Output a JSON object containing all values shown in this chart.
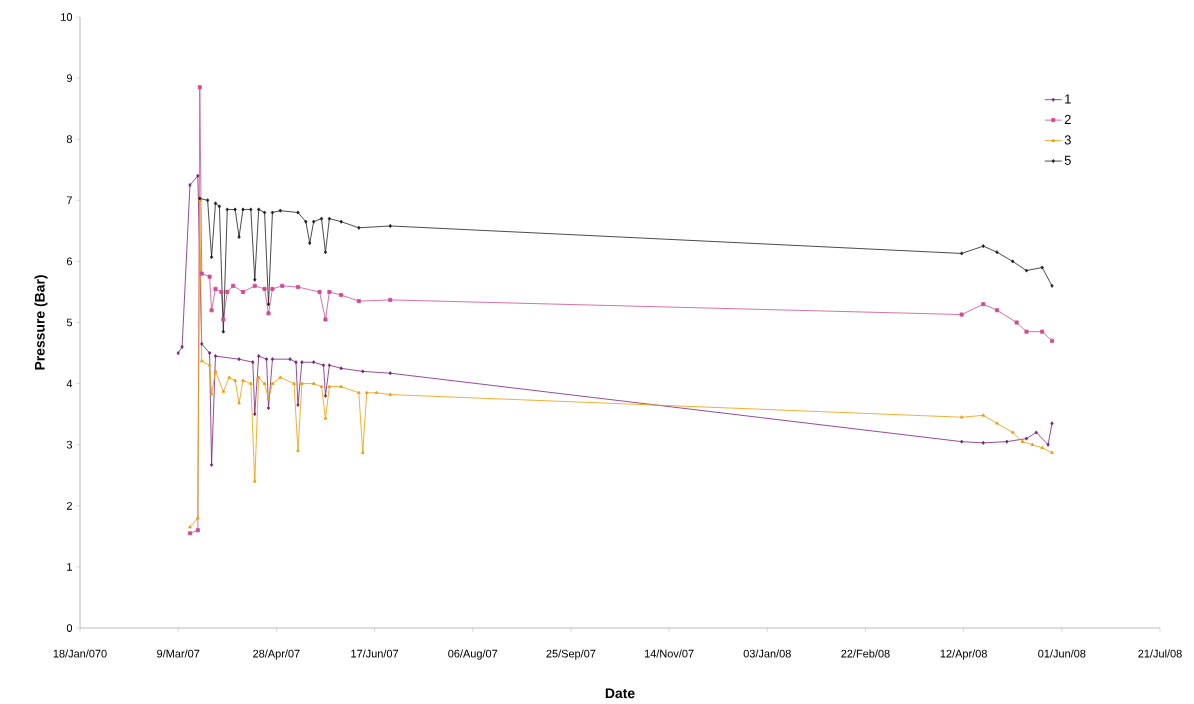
{
  "chart_data": {
    "type": "line",
    "xlabel": "Date",
    "ylabel": "Pressure (Bar)",
    "xlim": [
      "2007-01-18",
      "2008-07-21"
    ],
    "xticks": [
      {
        "value": "2007-01-18",
        "label": "18/Jan/070"
      },
      {
        "value": "2007-03-09",
        "label": "9/Mar/07"
      },
      {
        "value": "2007-04-28",
        "label": "28/Apr/07"
      },
      {
        "value": "2007-06-17",
        "label": "17/Jun/07"
      },
      {
        "value": "2007-08-06",
        "label": "06/Aug/07"
      },
      {
        "value": "2007-09-25",
        "label": "25/Sep/07"
      },
      {
        "value": "2007-11-14",
        "label": "14/Nov/07"
      },
      {
        "value": "2008-01-03",
        "label": "03/Jan/08"
      },
      {
        "value": "2008-02-22",
        "label": "22/Feb/08"
      },
      {
        "value": "2008-04-12",
        "label": "12/Apr/08"
      },
      {
        "value": "2008-06-01",
        "label": "01/Jun/08"
      },
      {
        "value": "2008-07-21",
        "label": "21/Jul/08"
      }
    ],
    "ylim": [
      0,
      10
    ],
    "yticks": [
      0,
      1,
      2,
      3,
      4,
      5,
      6,
      7,
      8,
      9,
      10
    ],
    "grid": false,
    "legend": "top right",
    "series": [
      {
        "name": "1",
        "color": "#7b1f7c",
        "marker": "diamond",
        "x": [
          "2007-03-09",
          "2007-03-11",
          "2007-03-15",
          "2007-03-19",
          "2007-03-21",
          "2007-03-25",
          "2007-03-26",
          "2007-03-28",
          "2007-04-09",
          "2007-04-16",
          "2007-04-17",
          "2007-04-19",
          "2007-04-23",
          "2007-04-24",
          "2007-04-26",
          "2007-05-05",
          "2007-05-08",
          "2007-05-09",
          "2007-05-11",
          "2007-05-17",
          "2007-05-22",
          "2007-05-23",
          "2007-05-25",
          "2007-05-31",
          "2007-06-11",
          "2007-06-25",
          "2008-04-11",
          "2008-04-22",
          "2008-05-04",
          "2008-05-14",
          "2008-05-19",
          "2008-05-25",
          "2008-05-27"
        ],
        "values": [
          4.5,
          4.6,
          7.25,
          7.4,
          4.65,
          4.5,
          2.67,
          4.45,
          4.4,
          4.35,
          3.5,
          4.45,
          4.4,
          3.6,
          4.4,
          4.4,
          4.35,
          3.65,
          4.35,
          4.35,
          4.3,
          3.8,
          4.3,
          4.25,
          4.2,
          4.17,
          3.05,
          3.03,
          3.05,
          3.1,
          3.2,
          3.0,
          3.35
        ]
      },
      {
        "name": "2",
        "color": "#d04b94",
        "marker": "square",
        "x": [
          "2007-03-15",
          "2007-03-19",
          "2007-03-20",
          "2007-03-21",
          "2007-03-25",
          "2007-03-26",
          "2007-03-28",
          "2007-03-31",
          "2007-04-01",
          "2007-04-03",
          "2007-04-06",
          "2007-04-11",
          "2007-04-17",
          "2007-04-22",
          "2007-04-24",
          "2007-04-26",
          "2007-05-01",
          "2007-05-09",
          "2007-05-20",
          "2007-05-23",
          "2007-05-25",
          "2007-05-31",
          "2007-06-09",
          "2007-06-25",
          "2008-04-11",
          "2008-04-22",
          "2008-04-29",
          "2008-05-09",
          "2008-05-14",
          "2008-05-22",
          "2008-05-27"
        ],
        "values": [
          1.55,
          1.6,
          8.85,
          5.8,
          5.75,
          5.2,
          5.55,
          5.5,
          5.05,
          5.5,
          5.6,
          5.5,
          5.6,
          5.55,
          5.15,
          5.55,
          5.6,
          5.58,
          5.5,
          5.05,
          5.5,
          5.45,
          5.35,
          5.37,
          5.13,
          5.3,
          5.2,
          5.0,
          4.85,
          4.85,
          4.7
        ]
      },
      {
        "name": "3",
        "color": "#f39a00",
        "marker": "triangle",
        "x": [
          "2007-03-15",
          "2007-03-19",
          "2007-03-20",
          "2007-03-21",
          "2007-03-25",
          "2007-03-26",
          "2007-03-28",
          "2007-04-01",
          "2007-04-04",
          "2007-04-07",
          "2007-04-09",
          "2007-04-11",
          "2007-04-15",
          "2007-04-17",
          "2007-04-19",
          "2007-04-22",
          "2007-04-24",
          "2007-04-26",
          "2007-04-30",
          "2007-05-07",
          "2007-05-09",
          "2007-05-11",
          "2007-05-17",
          "2007-05-21",
          "2007-05-23",
          "2007-05-25",
          "2007-05-31",
          "2007-06-09",
          "2007-06-11",
          "2007-06-13",
          "2007-06-18",
          "2007-06-25",
          "2008-04-11",
          "2008-04-22",
          "2008-04-29",
          "2008-05-07",
          "2008-05-12",
          "2008-05-17",
          "2008-05-22",
          "2008-05-27"
        ],
        "values": [
          1.65,
          1.8,
          7.0,
          4.37,
          4.3,
          3.83,
          4.2,
          3.87,
          4.1,
          4.05,
          3.68,
          4.05,
          4.0,
          2.4,
          4.1,
          4.0,
          3.75,
          4.0,
          4.1,
          4.0,
          2.9,
          4.0,
          4.0,
          3.95,
          3.43,
          3.95,
          3.95,
          3.85,
          2.87,
          3.85,
          3.85,
          3.82,
          3.45,
          3.48,
          3.35,
          3.2,
          3.05,
          3.0,
          2.95,
          2.87
        ]
      },
      {
        "name": "5",
        "color": "#1e1e1e",
        "marker": "diamond",
        "x": [
          "2007-03-20",
          "2007-03-24",
          "2007-03-26",
          "2007-03-28",
          "2007-03-30",
          "2007-04-01",
          "2007-04-03",
          "2007-04-07",
          "2007-04-09",
          "2007-04-11",
          "2007-04-15",
          "2007-04-17",
          "2007-04-19",
          "2007-04-22",
          "2007-04-24",
          "2007-04-26",
          "2007-04-30",
          "2007-05-09",
          "2007-05-13",
          "2007-05-15",
          "2007-05-17",
          "2007-05-21",
          "2007-05-23",
          "2007-05-25",
          "2007-05-31",
          "2007-06-09",
          "2007-06-25",
          "2008-04-11",
          "2008-04-22",
          "2008-04-29",
          "2008-05-07",
          "2008-05-14",
          "2008-05-22",
          "2008-05-27"
        ],
        "values": [
          7.03,
          7.0,
          6.07,
          6.95,
          6.9,
          4.85,
          6.85,
          6.85,
          6.4,
          6.85,
          6.85,
          5.7,
          6.85,
          6.8,
          5.3,
          6.8,
          6.83,
          6.8,
          6.65,
          6.3,
          6.65,
          6.7,
          6.15,
          6.7,
          6.65,
          6.55,
          6.58,
          6.13,
          6.25,
          6.15,
          6.0,
          5.85,
          5.9,
          5.6
        ]
      }
    ]
  }
}
